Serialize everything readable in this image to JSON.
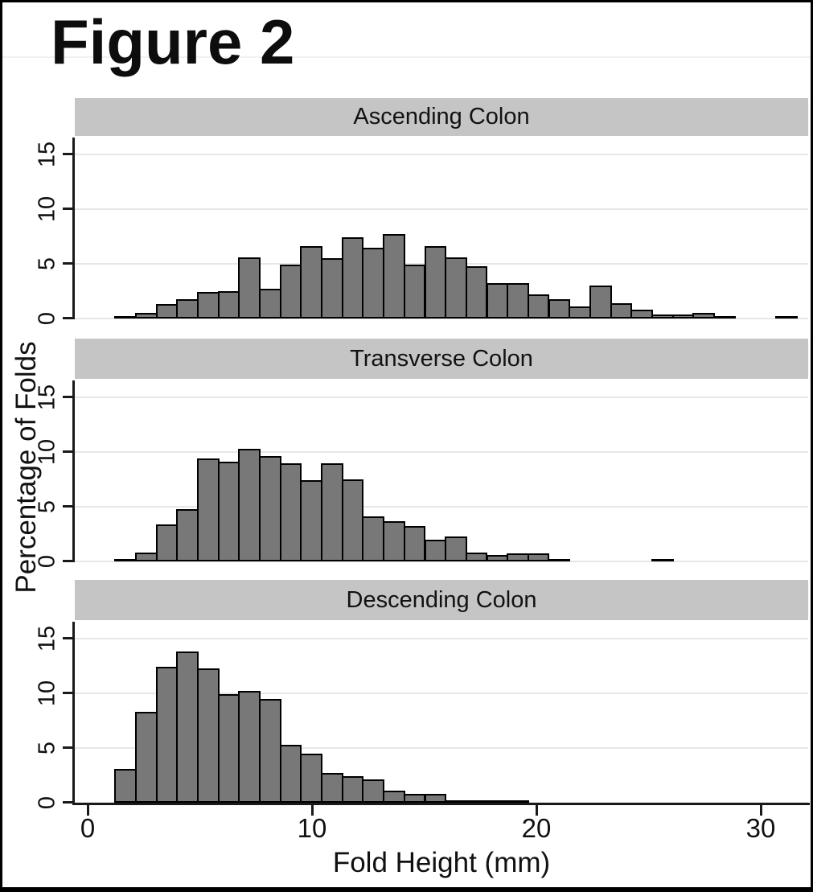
{
  "figure": {
    "title": "Figure 2"
  },
  "y_axis": {
    "label": "Percentage of Folds",
    "ticks": [
      0,
      5,
      10,
      15
    ]
  },
  "x_axis": {
    "label": "Fold Height (mm)",
    "ticks": [
      0,
      10,
      20,
      30
    ]
  },
  "colors": {
    "bar_fill": "#787878",
    "bar_border": "#000000",
    "band_bg": "#c5c5c5",
    "gridline": "#e7e7e7",
    "axis": "#1a1a1a"
  },
  "chart_data": [
    {
      "type": "bar",
      "title": "Ascending Colon",
      "xlabel": "Fold Height (mm)",
      "ylabel": "Percentage of Folds",
      "bin_start_mm": 1.2,
      "bin_width_mm": 0.92,
      "xlim": [
        -0.6,
        32.1
      ],
      "ylim": [
        0,
        16.7
      ],
      "grid": true,
      "values": [
        0.2,
        0.5,
        1.3,
        1.8,
        2.4,
        2.5,
        5.6,
        2.7,
        4.9,
        6.6,
        5.5,
        7.4,
        6.5,
        7.7,
        4.9,
        6.6,
        5.6,
        4.8,
        3.2,
        3.2,
        2.2,
        1.8,
        1.1,
        3.0,
        1.4,
        0.8,
        0.4,
        0.4,
        0.5,
        0.2,
        0,
        0,
        0.25
      ]
    },
    {
      "type": "bar",
      "title": "Transverse Colon",
      "xlabel": "Fold Height (mm)",
      "ylabel": "Percentage of Folds",
      "bin_start_mm": 1.2,
      "bin_width_mm": 0.92,
      "xlim": [
        -0.6,
        32.1
      ],
      "ylim": [
        0,
        16.7
      ],
      "grid": true,
      "values": [
        0.2,
        0.8,
        3.4,
        4.8,
        9.4,
        9.1,
        10.3,
        9.6,
        9.0,
        7.4,
        9.0,
        7.5,
        4.1,
        3.7,
        3.2,
        2.0,
        2.3,
        0.8,
        0.6,
        0.7,
        0.7,
        0.2,
        0,
        0,
        0,
        0,
        0.2
      ]
    },
    {
      "type": "bar",
      "title": "Descending Colon",
      "xlabel": "Fold Height (mm)",
      "ylabel": "Percentage of Folds",
      "bin_start_mm": 1.2,
      "bin_width_mm": 0.92,
      "xlim": [
        -0.6,
        32.1
      ],
      "ylim": [
        0,
        16.7
      ],
      "grid": true,
      "values": [
        3.1,
        8.3,
        12.4,
        13.8,
        12.3,
        9.9,
        10.2,
        9.5,
        5.3,
        4.5,
        2.7,
        2.4,
        2.1,
        1.1,
        0.8,
        0.8,
        0.15,
        0.15,
        0.1,
        0.1
      ]
    }
  ]
}
